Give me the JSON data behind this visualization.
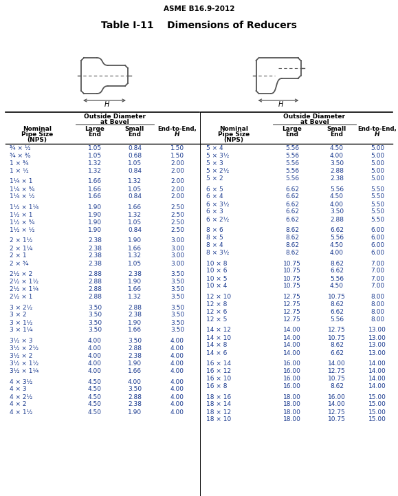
{
  "title_top": "ASME B16.9-2012",
  "title_main": "Table I-11    Dimensions of Reducers",
  "text_color": "#1a3a8f",
  "header_color": "#000000",
  "bg_color": "#ffffff",
  "line_color": "#000000",
  "left_data": [
    [
      "¾ × ½",
      "1.05",
      "0.84",
      "1.50"
    ],
    [
      "¾ × ⅜",
      "1.05",
      "0.68",
      "1.50"
    ],
    [
      "1 × ¾",
      "1.32",
      "1.05",
      "2.00"
    ],
    [
      "1 × ½",
      "1.32",
      "0.84",
      "2.00"
    ],
    [
      "",
      "",
      "",
      ""
    ],
    [
      "1¼ × 1",
      "1.66",
      "1.32",
      "2.00"
    ],
    [
      "1¼ × ¾",
      "1.66",
      "1.05",
      "2.00"
    ],
    [
      "1¼ × ½",
      "1.66",
      "0.84",
      "2.00"
    ],
    [
      "",
      "",
      "",
      ""
    ],
    [
      "1½ × 1¼",
      "1.90",
      "1.66",
      "2.50"
    ],
    [
      "1½ × 1",
      "1.90",
      "1.32",
      "2.50"
    ],
    [
      "1½ × ¾",
      "1.90",
      "1.05",
      "2.50"
    ],
    [
      "1½ × ½",
      "1.90",
      "0.84",
      "2.50"
    ],
    [
      "",
      "",
      "",
      ""
    ],
    [
      "2 × 1½",
      "2.38",
      "1.90",
      "3.00"
    ],
    [
      "2 × 1¼",
      "2.38",
      "1.66",
      "3.00"
    ],
    [
      "2 × 1",
      "2.38",
      "1.32",
      "3.00"
    ],
    [
      "2 × ¾",
      "2.38",
      "1.05",
      "3.00"
    ],
    [
      "",
      "",
      "",
      ""
    ],
    [
      "2½ × 2",
      "2.88",
      "2.38",
      "3.50"
    ],
    [
      "2½ × 1½",
      "2.88",
      "1.90",
      "3.50"
    ],
    [
      "2½ × 1¼",
      "2.88",
      "1.66",
      "3.50"
    ],
    [
      "2½ × 1",
      "2.88",
      "1.32",
      "3.50"
    ],
    [
      "",
      "",
      "",
      ""
    ],
    [
      "3 × 2½",
      "3.50",
      "2.88",
      "3.50"
    ],
    [
      "3 × 2",
      "3.50",
      "2.38",
      "3.50"
    ],
    [
      "3 × 1½",
      "3.50",
      "1.90",
      "3.50"
    ],
    [
      "3 × 1¼",
      "3.50",
      "1.66",
      "3.50"
    ],
    [
      "",
      "",
      "",
      ""
    ],
    [
      "3½ × 3",
      "4.00",
      "3.50",
      "4.00"
    ],
    [
      "3½ × 2½",
      "4.00",
      "2.88",
      "4.00"
    ],
    [
      "3½ × 2",
      "4.00",
      "2.38",
      "4.00"
    ],
    [
      "3½ × 1½",
      "4.00",
      "1.90",
      "4.00"
    ],
    [
      "3½ × 1¼",
      "4.00",
      "1.66",
      "4.00"
    ],
    [
      "",
      "",
      "",
      ""
    ],
    [
      "4 × 3½",
      "4.50",
      "4.00",
      "4.00"
    ],
    [
      "4 × 3",
      "4.50",
      "3.50",
      "4.00"
    ],
    [
      "4 × 2½",
      "4.50",
      "2.88",
      "4.00"
    ],
    [
      "4 × 2",
      "4.50",
      "2.38",
      "4.00"
    ],
    [
      "4 × 1½",
      "4.50",
      "1.90",
      "4.00"
    ]
  ],
  "right_data": [
    [
      "5 × 4",
      "5.56",
      "4.50",
      "5.00"
    ],
    [
      "5 × 3½",
      "5.56",
      "4.00",
      "5.00"
    ],
    [
      "5 × 3",
      "5.56",
      "3.50",
      "5.00"
    ],
    [
      "5 × 2½",
      "5.56",
      "2.88",
      "5.00"
    ],
    [
      "5 × 2",
      "5.56",
      "2.38",
      "5.00"
    ],
    [
      "",
      "",
      "",
      ""
    ],
    [
      "6 × 5",
      "6.62",
      "5.56",
      "5.50"
    ],
    [
      "6 × 4",
      "6.62",
      "4.50",
      "5.50"
    ],
    [
      "6 × 3½",
      "6.62",
      "4.00",
      "5.50"
    ],
    [
      "6 × 3",
      "6.62",
      "3.50",
      "5.50"
    ],
    [
      "6 × 2½",
      "6.62",
      "2.88",
      "5.50"
    ],
    [
      "",
      "",
      "",
      ""
    ],
    [
      "8 × 6",
      "8.62",
      "6.62",
      "6.00"
    ],
    [
      "8 × 5",
      "8.62",
      "5.56",
      "6.00"
    ],
    [
      "8 × 4",
      "8.62",
      "4.50",
      "6.00"
    ],
    [
      "8 × 3½",
      "8.62",
      "4.00",
      "6.00"
    ],
    [
      "",
      "",
      "",
      ""
    ],
    [
      "10 × 8",
      "10.75",
      "8.62",
      "7.00"
    ],
    [
      "10 × 6",
      "10.75",
      "6.62",
      "7.00"
    ],
    [
      "10 × 5",
      "10.75",
      "5.56",
      "7.00"
    ],
    [
      "10 × 4",
      "10.75",
      "4.50",
      "7.00"
    ],
    [
      "",
      "",
      "",
      ""
    ],
    [
      "12 × 10",
      "12.75",
      "10.75",
      "8.00"
    ],
    [
      "12 × 8",
      "12.75",
      "8.62",
      "8.00"
    ],
    [
      "12 × 6",
      "12.75",
      "6.62",
      "8.00"
    ],
    [
      "12 × 5",
      "12.75",
      "5.56",
      "8.00"
    ],
    [
      "",
      "",
      "",
      ""
    ],
    [
      "14 × 12",
      "14.00",
      "12.75",
      "13.00"
    ],
    [
      "14 × 10",
      "14.00",
      "10.75",
      "13.00"
    ],
    [
      "14 × 8",
      "14.00",
      "8.62",
      "13.00"
    ],
    [
      "14 × 6",
      "14.00",
      "6.62",
      "13.00"
    ],
    [
      "",
      "",
      "",
      ""
    ],
    [
      "16 × 14",
      "16.00",
      "14.00",
      "14.00"
    ],
    [
      "16 × 12",
      "16.00",
      "12.75",
      "14.00"
    ],
    [
      "16 × 10",
      "16.00",
      "10.75",
      "14.00"
    ],
    [
      "16 × 8",
      "16.00",
      "8.62",
      "14.00"
    ],
    [
      "",
      "",
      "",
      ""
    ],
    [
      "18 × 16",
      "18.00",
      "16.00",
      "15.00"
    ],
    [
      "18 × 14",
      "18.00",
      "14.00",
      "15.00"
    ],
    [
      "18 × 12",
      "18.00",
      "12.75",
      "15.00"
    ],
    [
      "18 × 10",
      "18.00",
      "10.75",
      "15.00"
    ]
  ]
}
